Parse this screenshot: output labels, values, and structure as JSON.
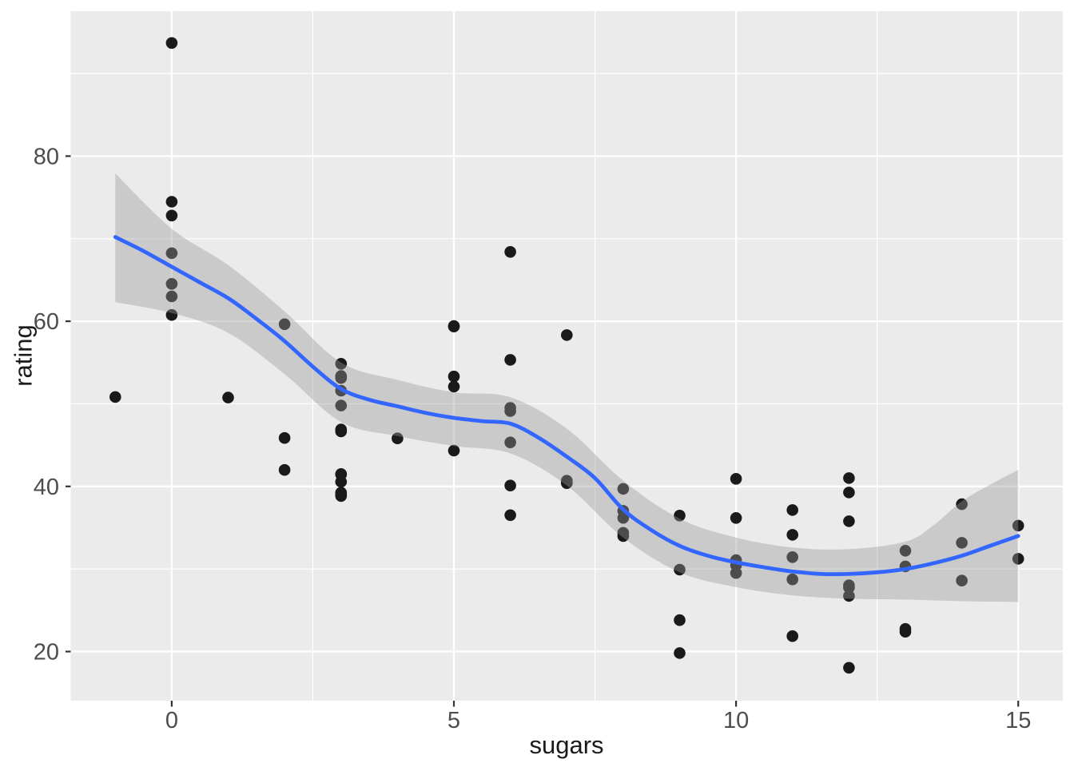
{
  "chart_data": {
    "type": "scatter",
    "title": "",
    "xlabel": "sugars",
    "ylabel": "rating",
    "legend": false,
    "grid": true,
    "panel": {
      "background": "#EBEBEB",
      "grid_color": "#FFFFFF"
    },
    "axes": {
      "xlim": [
        -1.79,
        15.79
      ],
      "ylim": [
        14.05,
        97.55
      ],
      "x_major_ticks": [
        0,
        5,
        10,
        15
      ],
      "x_minor_ticks": [
        2.5,
        7.5,
        12.5
      ],
      "x_tick_labels": [
        "0",
        "5",
        "10",
        "15"
      ],
      "y_major_ticks": [
        20,
        40,
        60,
        80
      ],
      "y_minor_ticks": [
        30,
        50,
        70,
        90
      ],
      "y_tick_labels": [
        "20",
        "40",
        "60",
        "80"
      ],
      "tick_text_color": "#4D4D4D",
      "tick_mark_color": "#333333"
    },
    "point_style": {
      "color": "#1A1A1A",
      "radius": 7.3
    },
    "points": [
      [
        -1,
        50.83
      ],
      [
        0,
        93.7
      ],
      [
        0,
        74.47
      ],
      [
        0,
        72.8
      ],
      [
        0,
        68.24
      ],
      [
        0,
        64.53
      ],
      [
        0,
        63.01
      ],
      [
        0,
        60.76
      ],
      [
        1,
        50.76
      ],
      [
        2,
        59.64
      ],
      [
        2,
        45.86
      ],
      [
        2,
        41.99
      ],
      [
        3,
        54.85
      ],
      [
        3,
        53.37
      ],
      [
        3,
        53.13
      ],
      [
        3,
        51.59
      ],
      [
        3,
        49.79
      ],
      [
        3,
        46.9
      ],
      [
        3,
        46.66
      ],
      [
        3,
        41.5
      ],
      [
        3,
        41.44
      ],
      [
        3,
        40.56
      ],
      [
        3,
        39.24
      ],
      [
        3,
        39.11
      ],
      [
        3,
        38.84
      ],
      [
        4,
        45.81
      ],
      [
        5,
        59.43
      ],
      [
        5,
        59.36
      ],
      [
        5,
        53.31
      ],
      [
        5,
        52.08
      ],
      [
        5,
        44.33
      ],
      [
        6,
        68.4
      ],
      [
        6,
        55.33
      ],
      [
        6,
        49.51
      ],
      [
        6,
        49.12
      ],
      [
        6,
        45.33
      ],
      [
        6,
        40.11
      ],
      [
        6,
        36.52
      ],
      [
        7,
        58.33
      ],
      [
        7,
        40.69
      ],
      [
        7,
        40.45
      ],
      [
        7,
        40.4
      ],
      [
        8,
        39.7
      ],
      [
        8,
        37.04
      ],
      [
        8,
        36.19
      ],
      [
        8,
        34.38
      ],
      [
        8,
        33.98
      ],
      [
        9,
        36.47
      ],
      [
        9,
        29.92
      ],
      [
        9,
        23.8
      ],
      [
        9,
        19.82
      ],
      [
        10,
        40.92
      ],
      [
        10,
        36.18
      ],
      [
        10,
        31.07
      ],
      [
        10,
        30.45
      ],
      [
        10,
        29.51
      ],
      [
        11,
        37.14
      ],
      [
        11,
        34.14
      ],
      [
        11,
        31.44
      ],
      [
        11,
        28.74
      ],
      [
        11,
        21.87
      ],
      [
        12,
        41.01
      ],
      [
        12,
        39.26
      ],
      [
        12,
        35.78
      ],
      [
        12,
        28.03
      ],
      [
        12,
        27.75
      ],
      [
        12,
        26.73
      ],
      [
        12,
        18.04
      ],
      [
        13,
        32.21
      ],
      [
        13,
        30.31
      ],
      [
        13,
        22.74
      ],
      [
        13,
        22.4
      ],
      [
        14,
        37.84
      ],
      [
        14,
        33.17
      ],
      [
        14,
        28.59
      ],
      [
        15,
        35.25
      ],
      [
        15,
        31.23
      ]
    ],
    "smooth_line": {
      "color": "#3366FF",
      "width": 4.8,
      "points": [
        [
          -1,
          70.2
        ],
        [
          -0.5,
          68.5
        ],
        [
          0,
          66.6
        ],
        [
          0.5,
          64.7
        ],
        [
          1,
          62.8
        ],
        [
          1.5,
          60.3
        ],
        [
          2,
          57.6
        ],
        [
          2.5,
          54.5
        ],
        [
          3,
          51.8
        ],
        [
          3.5,
          50.5
        ],
        [
          4,
          49.7
        ],
        [
          4.5,
          48.9
        ],
        [
          5,
          48.3
        ],
        [
          5.5,
          47.9
        ],
        [
          6,
          47.6
        ],
        [
          6.5,
          45.9
        ],
        [
          7,
          43.6
        ],
        [
          7.5,
          41.0
        ],
        [
          8,
          37.2
        ],
        [
          8.5,
          34.7
        ],
        [
          9,
          32.8
        ],
        [
          9.5,
          31.6
        ],
        [
          10,
          30.8
        ],
        [
          10.5,
          30.2
        ],
        [
          11,
          29.7
        ],
        [
          11.5,
          29.4
        ],
        [
          12,
          29.4
        ],
        [
          12.5,
          29.6
        ],
        [
          13,
          30.0
        ],
        [
          13.5,
          30.7
        ],
        [
          14,
          31.6
        ],
        [
          14.5,
          32.8
        ],
        [
          15,
          34.0
        ]
      ]
    },
    "ribbon": {
      "fill": "rgba(153,153,153,0.40)",
      "upper": [
        [
          -1,
          77.9
        ],
        [
          0,
          71.2
        ],
        [
          1,
          66.8
        ],
        [
          2,
          61.2
        ],
        [
          3,
          55.0
        ],
        [
          4,
          52.9
        ],
        [
          5,
          51.4
        ],
        [
          6,
          50.8
        ],
        [
          7,
          47.0
        ],
        [
          8,
          40.7
        ],
        [
          9,
          36.1
        ],
        [
          10,
          33.8
        ],
        [
          11,
          32.6
        ],
        [
          12,
          32.4
        ],
        [
          13,
          33.3
        ],
        [
          13.5,
          35.3
        ],
        [
          14,
          38.2
        ],
        [
          14.5,
          40.2
        ],
        [
          15,
          42.0
        ]
      ],
      "lower": [
        [
          -1,
          62.3
        ],
        [
          0,
          61.0
        ],
        [
          1,
          58.6
        ],
        [
          2,
          53.6
        ],
        [
          3,
          47.8
        ],
        [
          4,
          46.1
        ],
        [
          5,
          44.9
        ],
        [
          6,
          44.0
        ],
        [
          7,
          40.1
        ],
        [
          8,
          33.8
        ],
        [
          9,
          29.6
        ],
        [
          10,
          27.8
        ],
        [
          11,
          26.8
        ],
        [
          12,
          26.4
        ],
        [
          13,
          26.3
        ],
        [
          14,
          26.1
        ],
        [
          15,
          26.0
        ]
      ]
    }
  }
}
